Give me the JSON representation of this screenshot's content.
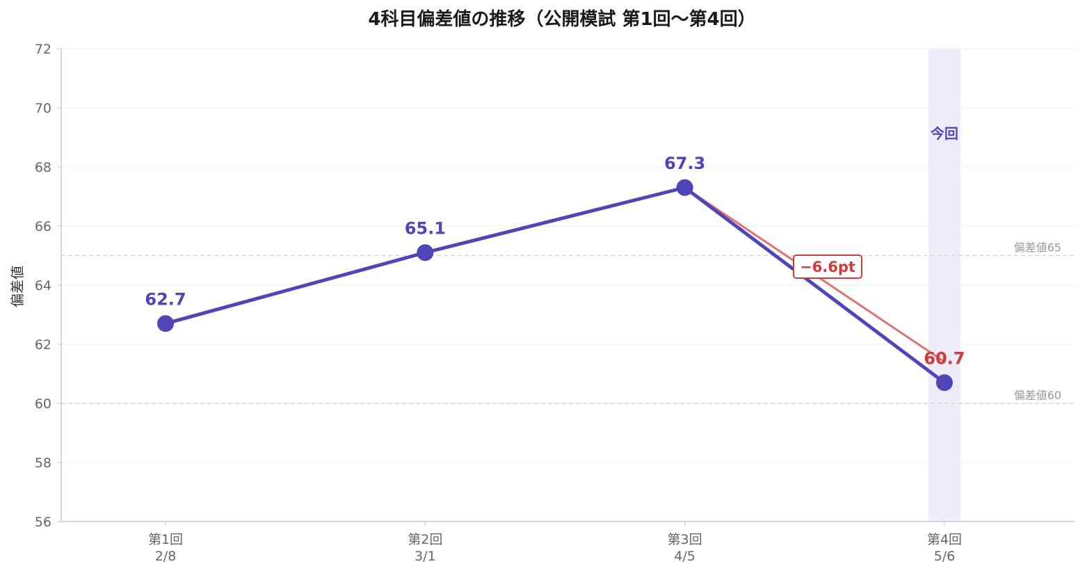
{
  "chart_data": {
    "type": "line",
    "title": "4科目偏差値の推移（公開模試 第1回〜第4回）",
    "xlabel": "",
    "ylabel": "偏差値",
    "ylim": [
      56,
      72
    ],
    "yticks": [
      56,
      58,
      60,
      62,
      64,
      66,
      68,
      70,
      72
    ],
    "categories": [
      {
        "round": "第1回",
        "date": "2/8"
      },
      {
        "round": "第2回",
        "date": "3/1"
      },
      {
        "round": "第3回",
        "date": "4/5"
      },
      {
        "round": "第4回",
        "date": "5/6"
      }
    ],
    "values": [
      62.7,
      65.1,
      67.3,
      60.7
    ],
    "value_labels": [
      "62.7",
      "65.1",
      "67.3",
      "60.7"
    ],
    "reference_lines": [
      {
        "value": 65,
        "label": "偏差値65"
      },
      {
        "value": 60,
        "label": "偏差値60"
      }
    ],
    "highlight": {
      "index": 3,
      "label": "今回"
    },
    "change_annotation": {
      "from_index": 2,
      "to_index": 3,
      "label": "−6.6pt"
    },
    "grid": true,
    "colors": {
      "series": "#4f45b8",
      "decline": "#d03a3a",
      "decline_line": "#e07272",
      "highlight_band": "#eeecf9",
      "axis": "#c8c8c8"
    }
  }
}
